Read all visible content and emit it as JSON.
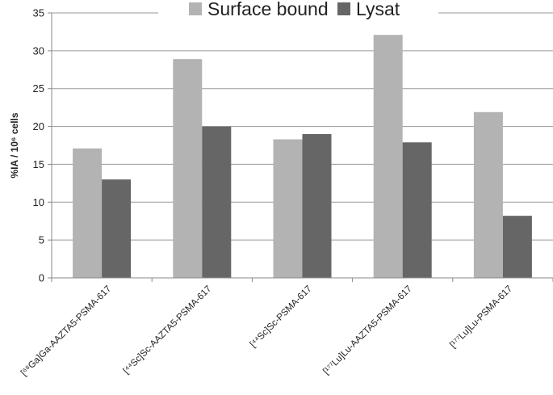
{
  "chart_data": {
    "type": "bar",
    "title": "",
    "xlabel": "",
    "ylabel": "%IA / 10⁶ cells",
    "ylim": [
      0,
      35
    ],
    "yticks": [
      0,
      5,
      10,
      15,
      20,
      25,
      30,
      35
    ],
    "grid": true,
    "legend_position": "top",
    "categories": [
      "[⁶⁸Ga]Ga-AAZTA5-PSMA-617",
      "[⁴⁴Sc]Sc-AAZTA5-PSMA-617",
      "[⁴⁴Sc]Sc-PSMA-617",
      "[¹⁷⁷Lu]Lu-AAZTA5-PSMA-617",
      "[¹⁷⁷Lu]Lu-PSMA-617"
    ],
    "series": [
      {
        "name": "Surface bound",
        "color": "#b3b3b3",
        "values": [
          17.1,
          28.9,
          18.3,
          32.1,
          21.9
        ]
      },
      {
        "name": "Lysat",
        "color": "#666666",
        "values": [
          13.0,
          20.0,
          19.0,
          17.9,
          8.2
        ]
      }
    ]
  }
}
